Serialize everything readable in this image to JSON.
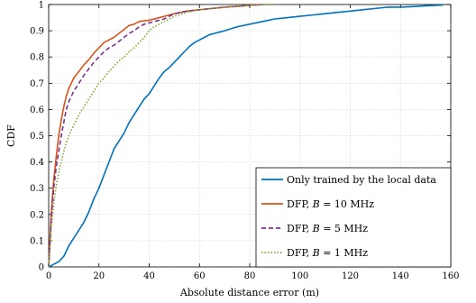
{
  "chart_data": {
    "type": "line",
    "xlabel": "Absolute distance error (m)",
    "ylabel": "CDF",
    "xlim": [
      0,
      160
    ],
    "ylim": [
      0,
      1
    ],
    "xticks": [
      0,
      20,
      40,
      60,
      80,
      100,
      120,
      140,
      160
    ],
    "yticks": [
      0,
      0.1,
      0.2,
      0.3,
      0.4,
      0.5,
      0.6,
      0.7,
      0.8,
      0.9,
      1
    ],
    "ytick_labels": [
      "0",
      "0.1",
      "0.2",
      "0.3",
      "0.4",
      "0.5",
      "0.6",
      "0.7",
      "0.8",
      "0.9",
      "1"
    ],
    "grid": true,
    "legend_position": "bottom-right",
    "series": [
      {
        "name": "Only trained by the local data",
        "color": "#0072BD",
        "dash": "solid",
        "x": [
          0,
          2,
          4,
          6,
          8,
          10,
          12,
          14,
          16,
          18,
          20,
          22,
          24,
          26,
          28,
          30,
          32,
          34,
          36,
          38,
          40,
          42,
          44,
          46,
          48,
          50,
          52,
          54,
          56,
          58,
          60,
          62,
          64,
          66,
          68,
          70,
          75,
          80,
          85,
          90,
          95,
          100,
          105,
          110,
          115,
          120,
          125,
          130,
          135,
          140,
          145,
          150,
          155,
          157
        ],
        "y": [
          0,
          0.01,
          0.02,
          0.04,
          0.08,
          0.11,
          0.14,
          0.17,
          0.21,
          0.26,
          0.3,
          0.35,
          0.4,
          0.45,
          0.48,
          0.51,
          0.55,
          0.58,
          0.61,
          0.64,
          0.66,
          0.69,
          0.72,
          0.745,
          0.76,
          0.78,
          0.8,
          0.82,
          0.84,
          0.855,
          0.865,
          0.875,
          0.885,
          0.89,
          0.895,
          0.9,
          0.915,
          0.925,
          0.935,
          0.945,
          0.95,
          0.955,
          0.96,
          0.965,
          0.97,
          0.975,
          0.98,
          0.985,
          0.99,
          0.99,
          0.992,
          0.995,
          0.997,
          0.998
        ]
      },
      {
        "name": "DFP, B = 10 MHz",
        "color": "#D95319",
        "dash": "solid",
        "x": [
          0,
          1,
          2,
          3,
          4,
          5,
          6,
          7,
          8,
          10,
          12,
          14,
          16,
          18,
          20,
          22,
          24,
          26,
          28,
          30,
          32,
          34,
          36,
          38,
          40,
          42,
          44,
          46,
          48,
          50,
          55,
          60,
          65,
          70,
          75,
          80,
          84
        ],
        "y": [
          0,
          0.2,
          0.33,
          0.42,
          0.5,
          0.56,
          0.61,
          0.65,
          0.68,
          0.72,
          0.745,
          0.77,
          0.79,
          0.815,
          0.835,
          0.855,
          0.865,
          0.875,
          0.89,
          0.905,
          0.92,
          0.925,
          0.935,
          0.938,
          0.94,
          0.945,
          0.95,
          0.955,
          0.96,
          0.965,
          0.975,
          0.98,
          0.985,
          0.99,
          0.993,
          0.997,
          1.0
        ]
      },
      {
        "name": "DFP, B = 5 MHz",
        "color": "#7E2F8E",
        "dash": "dashed",
        "x": [
          0,
          1,
          2,
          3,
          4,
          5,
          6,
          7,
          8,
          10,
          12,
          14,
          16,
          18,
          20,
          22,
          24,
          26,
          28,
          30,
          32,
          34,
          36,
          38,
          40,
          42,
          44,
          46,
          48,
          50,
          55,
          60,
          65,
          70,
          75,
          80,
          85
        ],
        "y": [
          0,
          0.18,
          0.3,
          0.38,
          0.44,
          0.5,
          0.55,
          0.6,
          0.63,
          0.67,
          0.7,
          0.73,
          0.755,
          0.78,
          0.8,
          0.82,
          0.835,
          0.845,
          0.86,
          0.875,
          0.89,
          0.9,
          0.915,
          0.925,
          0.93,
          0.935,
          0.94,
          0.945,
          0.955,
          0.965,
          0.975,
          0.98,
          0.985,
          0.99,
          0.993,
          0.997,
          1.0
        ]
      },
      {
        "name": "DFP, B = 1 MHz",
        "color": "#77AC30",
        "dash": "dotted",
        "x": [
          0,
          1,
          2,
          3,
          4,
          5,
          6,
          7,
          8,
          10,
          12,
          14,
          16,
          18,
          20,
          22,
          24,
          26,
          28,
          30,
          32,
          34,
          36,
          38,
          40,
          42,
          44,
          46,
          48,
          50,
          55,
          60,
          65,
          70,
          75,
          80,
          85,
          90
        ],
        "y": [
          0,
          0.14,
          0.24,
          0.31,
          0.36,
          0.4,
          0.44,
          0.47,
          0.5,
          0.54,
          0.58,
          0.61,
          0.64,
          0.67,
          0.7,
          0.72,
          0.745,
          0.765,
          0.785,
          0.8,
          0.82,
          0.835,
          0.855,
          0.875,
          0.9,
          0.915,
          0.925,
          0.935,
          0.945,
          0.955,
          0.97,
          0.98,
          0.985,
          0.99,
          0.993,
          0.997,
          0.998,
          1.0
        ]
      }
    ]
  },
  "legend": {
    "entries": [
      {
        "prefix": "Only trained by the local data",
        "var": "",
        "suffix": ""
      },
      {
        "prefix": "DFP, ",
        "var": "B",
        "suffix": " = 10 MHz"
      },
      {
        "prefix": "DFP, ",
        "var": "B",
        "suffix": " = 5 MHz"
      },
      {
        "prefix": "DFP, ",
        "var": "B",
        "suffix": " = 1 MHz"
      }
    ]
  }
}
